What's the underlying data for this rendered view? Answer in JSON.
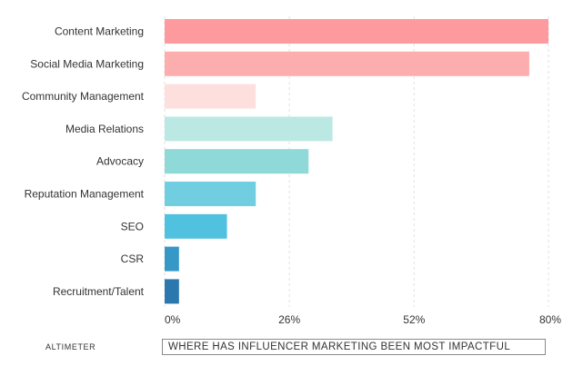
{
  "chart_data": {
    "type": "bar",
    "orientation": "horizontal",
    "categories": [
      "Content Marketing",
      "Social Media Marketing",
      "Community Management",
      "Media Relations",
      "Advocacy",
      "Reputation Management",
      "SEO",
      "CSR",
      "Recruitment/Talent"
    ],
    "values": [
      80,
      76,
      19,
      35,
      30,
      19,
      13,
      3,
      3
    ],
    "unit": "%",
    "x_ticks": [
      "0%",
      "26%",
      "52%",
      "80%"
    ],
    "x_tick_values": [
      0,
      26,
      52,
      80
    ],
    "xlim": [
      0,
      80
    ],
    "grid": true,
    "legend": "none",
    "bar_colors": [
      "#fc9a9e",
      "#fcaeaf",
      "#fde0de",
      "#bce8e3",
      "#8fd9d8",
      "#70cee0",
      "#51c1e0",
      "#3598c7",
      "#2a78ad"
    ],
    "title": "",
    "xlabel": "",
    "ylabel": ""
  },
  "footer": {
    "brand": "ALTIMETER",
    "title": "WHERE HAS INFLUENCER MARKETING BEEN MOST IMPACTFUL"
  }
}
